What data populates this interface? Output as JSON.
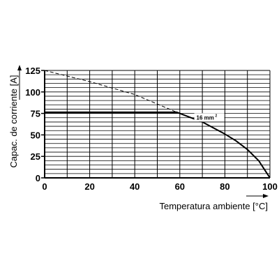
{
  "chart_data": {
    "type": "line",
    "title": "",
    "xlabel": "Temperatura ambiente [°C]",
    "ylabel": "Capac. de corriente [A]",
    "xlim": [
      0,
      100
    ],
    "ylim": [
      0,
      125
    ],
    "xticks": [
      0,
      20,
      40,
      60,
      80,
      100
    ],
    "yticks": [
      0,
      25,
      50,
      75,
      100,
      125
    ],
    "x_grid_step": 10,
    "y_grid_step": 5,
    "grid": true,
    "legend": "none",
    "series": [
      {
        "name": "",
        "style": "dashed",
        "x": [
          0,
          20,
          40,
          59
        ],
        "y": [
          125,
          112,
          97,
          76
        ]
      },
      {
        "name": "",
        "style": "solid-bold",
        "x": [
          0,
          59
        ],
        "y": [
          76,
          76
        ]
      },
      {
        "name": "",
        "style": "solid",
        "x": [
          59,
          65,
          70,
          75,
          80,
          85,
          90,
          95,
          100
        ],
        "y": [
          76,
          70,
          65,
          58,
          51,
          43,
          33,
          20,
          0
        ]
      }
    ],
    "annotations": [
      {
        "text": "16 mm",
        "superscript": "2",
        "x": 72,
        "y": 76
      }
    ]
  }
}
